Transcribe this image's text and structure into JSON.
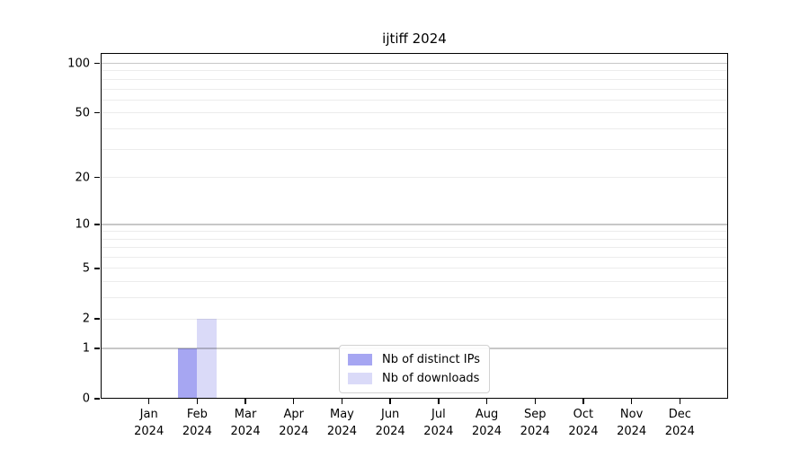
{
  "chart_data": {
    "type": "bar",
    "title": "ijtiff 2024",
    "x": {
      "months": [
        "Jan",
        "Feb",
        "Mar",
        "Apr",
        "May",
        "Jun",
        "Jul",
        "Aug",
        "Sep",
        "Oct",
        "Nov",
        "Dec"
      ],
      "year": "2024"
    },
    "y": {
      "scale": "log10(1+y)",
      "ylim": [
        0,
        100
      ],
      "tick_values": [
        0,
        1,
        2,
        5,
        10,
        20,
        50,
        100
      ],
      "major_gridlines": [
        1,
        10,
        100
      ],
      "minor_gridlines": [
        2,
        3,
        4,
        5,
        6,
        7,
        8,
        9,
        20,
        30,
        40,
        50,
        60,
        70,
        80,
        90
      ],
      "grid": "on"
    },
    "series": [
      {
        "name": "Nb of distinct IPs",
        "color": "#a6a6f2",
        "values": [
          0,
          1,
          0,
          0,
          0,
          0,
          0,
          0,
          0,
          0,
          0,
          0
        ]
      },
      {
        "name": "Nb of downloads",
        "color": "#dadaf8",
        "values": [
          0,
          2,
          0,
          0,
          0,
          0,
          0,
          0,
          0,
          0,
          0,
          0
        ]
      }
    ],
    "legend": {
      "position": "lower center"
    },
    "colors": {
      "spine": "#000000",
      "major_grid": "#c8c8c8",
      "minor_grid": "#ececec",
      "background": "#ffffff",
      "text": "#000000"
    }
  }
}
